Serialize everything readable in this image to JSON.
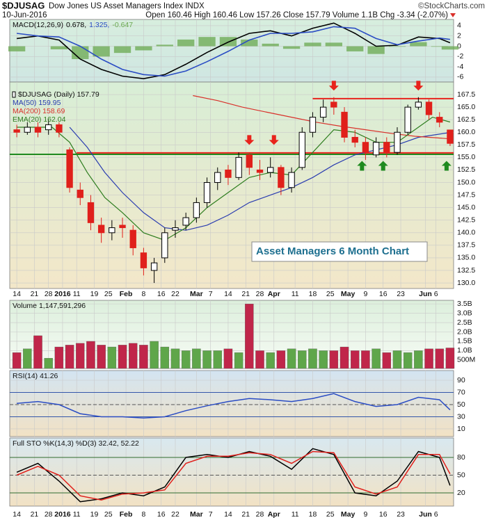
{
  "header": {
    "symbol": "$DJUSAG",
    "name": "Dow Jones US Asset Managers Index INDX",
    "credit": "©StockCharts.com",
    "date": "10-Jun-2016",
    "quote": "Open 160.46 High 160.46 Low 157.26 Close 157.79 Volume 1.1B Chg -3.34 (-2.07%)"
  },
  "x_axis": {
    "xlim": [
      -2,
      124
    ],
    "xticks": [
      {
        "value": 0,
        "label": "14"
      },
      {
        "value": 5,
        "label": "21"
      },
      {
        "value": 9,
        "label": "28"
      },
      {
        "value": 13,
        "label": "2016"
      },
      {
        "value": 17,
        "label": "11"
      },
      {
        "value": 22,
        "label": "19"
      },
      {
        "value": 26,
        "label": "25"
      },
      {
        "value": 31,
        "label": "Feb"
      },
      {
        "value": 36,
        "label": "8"
      },
      {
        "value": 41,
        "label": "16"
      },
      {
        "value": 45,
        "label": "22"
      },
      {
        "value": 51,
        "label": "Mar"
      },
      {
        "value": 55,
        "label": "7"
      },
      {
        "value": 60,
        "label": "14"
      },
      {
        "value": 65,
        "label": "21"
      },
      {
        "value": 69,
        "label": "28"
      },
      {
        "value": 73,
        "label": "Apr"
      },
      {
        "value": 79,
        "label": "11"
      },
      {
        "value": 84,
        "label": "18"
      },
      {
        "value": 89,
        "label": "25"
      },
      {
        "value": 94,
        "label": "May"
      },
      {
        "value": 99,
        "label": "9"
      },
      {
        "value": 104,
        "label": "16"
      },
      {
        "value": 109,
        "label": "23"
      },
      {
        "value": 116,
        "label": "Jun"
      },
      {
        "value": 119,
        "label": "6"
      }
    ]
  },
  "chart_data": [
    {
      "type": "macd",
      "title": "MACD(12,26,9)",
      "x": [
        0,
        6,
        12,
        18,
        24,
        30,
        36,
        42,
        48,
        54,
        60,
        66,
        72,
        78,
        84,
        90,
        96,
        102,
        108,
        114,
        120,
        123
      ],
      "series": [
        {
          "label": "0.678,",
          "color": "#000000",
          "style": "line",
          "values": [
            1.5,
            2.0,
            1.2,
            -2.5,
            -4.5,
            -5.8,
            -6.3,
            -5.5,
            -3.5,
            -1.2,
            0.8,
            2.5,
            3.0,
            2.0,
            3.5,
            4.5,
            2.5,
            0.0,
            0.2,
            1.8,
            1.5,
            0.678
          ]
        },
        {
          "label": "1.325,",
          "color": "#2a4cc4",
          "style": "line",
          "values": [
            2.5,
            2.0,
            1.8,
            0,
            -2.5,
            -4.5,
            -5.5,
            -5.8,
            -4.8,
            -3,
            -1,
            1.2,
            2.5,
            2.5,
            2.8,
            3.8,
            3.5,
            1.5,
            0.3,
            1.0,
            1.6,
            1.325
          ]
        },
        {
          "label": "-0.647",
          "color": "#6aa84f",
          "style": "histogram",
          "values": [
            -1,
            0,
            -0.6,
            -2.5,
            -2,
            -1.3,
            -0.8,
            0.3,
            1.3,
            1.8,
            1.8,
            1.3,
            0.5,
            -0.5,
            0.7,
            0.7,
            -1,
            -1.5,
            -0.1,
            0.8,
            -0.1,
            -0.647
          ]
        }
      ],
      "ylim": [
        -6.95,
        5.2
      ],
      "yticks": [
        4,
        2,
        0,
        -2,
        -4,
        -6
      ],
      "grid": true
    },
    {
      "type": "candlestick",
      "title": "$DJUSAG (Daily) 157.79",
      "x": [
        0,
        3,
        6,
        9,
        12,
        15,
        18,
        21,
        24,
        27,
        30,
        33,
        36,
        39,
        42,
        45,
        48,
        51,
        54,
        57,
        60,
        63,
        66,
        69,
        72,
        75,
        78,
        81,
        84,
        87,
        90,
        93,
        96,
        99,
        102,
        105,
        108,
        111,
        114,
        117,
        120,
        123
      ],
      "open": [
        160.5,
        160,
        161,
        160.5,
        161.5,
        156.5,
        148.5,
        146,
        141.5,
        140,
        141.5,
        140.5,
        136,
        132.5,
        135,
        140.5,
        141.5,
        143,
        146,
        150,
        152.5,
        151,
        155.5,
        152.5,
        152,
        153,
        149,
        153,
        160,
        163,
        166,
        164,
        159,
        158,
        155.5,
        158,
        156,
        160,
        165,
        166,
        163,
        160.46
      ],
      "high": [
        161.5,
        162,
        162,
        162.5,
        162,
        157,
        150,
        147.5,
        143,
        142.5,
        143,
        141.5,
        137,
        135,
        141,
        142.5,
        144,
        147,
        151,
        153,
        153.5,
        156,
        156,
        154.5,
        155,
        153.5,
        153,
        161,
        164,
        166.5,
        167,
        165,
        160.5,
        159,
        159,
        159,
        161,
        165.5,
        167,
        166.5,
        164,
        160.46
      ],
      "low": [
        159,
        159.5,
        159,
        159.5,
        159,
        148,
        145.5,
        140.5,
        138,
        138.5,
        139,
        135.5,
        131.5,
        130,
        134,
        139,
        140.5,
        142,
        145,
        148.5,
        149.5,
        150.5,
        151.5,
        150.5,
        151,
        147.5,
        148,
        152.5,
        159,
        162,
        163.5,
        158,
        157,
        154.5,
        155,
        155,
        155.5,
        159.5,
        164.5,
        162.5,
        161,
        157.26
      ],
      "close": [
        160,
        161,
        160,
        161.5,
        160,
        149,
        147,
        142,
        140,
        141,
        141,
        137,
        133,
        134,
        140,
        141,
        143,
        146,
        150,
        152,
        151,
        155,
        153,
        152,
        153,
        149,
        152,
        160,
        163,
        165,
        165,
        159,
        158,
        156,
        158,
        156,
        160,
        165,
        166,
        163.5,
        162,
        157.79
      ],
      "up_color": "#000000",
      "down_color": "#e0201b",
      "overlays": [
        {
          "label": "MA(50) 159.95",
          "color": "#2a3cb0",
          "x": [
            15,
            20,
            25,
            30,
            36,
            42,
            48,
            54,
            60,
            66,
            72,
            78,
            84,
            90,
            96,
            102,
            108,
            114,
            123
          ],
          "values": [
            161,
            157,
            152,
            148,
            144,
            141,
            140.5,
            141.5,
            143.5,
            146,
            147.5,
            149,
            151,
            153.5,
            155.5,
            156.5,
            157.5,
            159,
            159.95
          ]
        },
        {
          "label": "MA(200) 158.69",
          "color": "#d9302a",
          "x": [
            50,
            57,
            64,
            71,
            78,
            85,
            92,
            99,
            106,
            113,
            123
          ],
          "values": [
            167.3,
            166.3,
            165,
            164,
            163,
            162,
            161.2,
            160.5,
            159.8,
            159.2,
            158.69
          ]
        },
        {
          "label": "EMA(20) 162.04",
          "color": "#2e7d1f",
          "x": [
            0,
            10,
            15,
            20,
            25,
            30,
            36,
            42,
            48,
            54,
            60,
            66,
            72,
            78,
            84,
            90,
            96,
            102,
            108,
            114,
            118,
            123
          ],
          "values": [
            161,
            161,
            158,
            152,
            147,
            144,
            140,
            138.5,
            141,
            145,
            148,
            151,
            152,
            151.5,
            156,
            160.5,
            160,
            158,
            158,
            161,
            163,
            162.04
          ]
        }
      ],
      "hlines": [
        {
          "value": 155.6,
          "from": -2,
          "color": "#1f8a1f"
        },
        {
          "value": 155.9,
          "from": 17,
          "color": "#e8231c"
        },
        {
          "value": 166.7,
          "from": 84,
          "color": "#e8231c"
        }
      ],
      "arrows": [
        {
          "x": 66,
          "value": 157.5,
          "direction": "down",
          "color": "#e8231c"
        },
        {
          "x": 73,
          "value": 157.5,
          "direction": "down",
          "color": "#e8231c"
        },
        {
          "x": 90,
          "value": 168.3,
          "direction": "down",
          "color": "#e8231c"
        },
        {
          "x": 114,
          "value": 168.3,
          "direction": "down",
          "color": "#e8231c"
        },
        {
          "x": 98,
          "value": 154.3,
          "direction": "up",
          "color": "#1f8a1f"
        },
        {
          "x": 104,
          "value": 154.3,
          "direction": "up",
          "color": "#1f8a1f"
        },
        {
          "x": 122,
          "value": 154.3,
          "direction": "up",
          "color": "#1f8a1f"
        }
      ],
      "annotation": "Asset Managers 6 Month Chart",
      "ylim": [
        128.9,
        170
      ],
      "yticks": [
        {
          "value": 130,
          "label": "130.0"
        },
        {
          "value": 132.5,
          "label": "132.5"
        },
        {
          "value": 135,
          "label": "135.0"
        },
        {
          "value": 137.5,
          "label": "137.5"
        },
        {
          "value": 140,
          "label": "140.0"
        },
        {
          "value": 142.5,
          "label": "142.5"
        },
        {
          "value": 145,
          "label": "145.0"
        },
        {
          "value": 147.5,
          "label": "147.5"
        },
        {
          "value": 150,
          "label": "150.0"
        },
        {
          "value": 152.5,
          "label": "152.5"
        },
        {
          "value": 155,
          "label": "155.0"
        },
        {
          "value": 157.5,
          "label": "157.5"
        },
        {
          "value": 160,
          "label": "160.0"
        },
        {
          "value": 162.5,
          "label": "162.5"
        },
        {
          "value": 165,
          "label": "165.0"
        },
        {
          "value": 167.5,
          "label": "167.5"
        }
      ],
      "grid": true
    },
    {
      "type": "volume",
      "title": "Volume 1,147,591,296",
      "x": [
        0,
        3,
        6,
        9,
        12,
        15,
        18,
        21,
        24,
        27,
        30,
        33,
        36,
        39,
        42,
        45,
        48,
        51,
        54,
        57,
        60,
        63,
        66,
        69,
        72,
        75,
        78,
        81,
        84,
        87,
        90,
        93,
        96,
        99,
        102,
        105,
        108,
        111,
        114,
        117,
        120,
        123
      ],
      "values": [
        900000000,
        1100000000,
        1800000000,
        600000000,
        1200000000,
        1300000000,
        1400000000,
        1500000000,
        1300000000,
        1200000000,
        1300000000,
        1400000000,
        1300000000,
        1500000000,
        1200000000,
        1100000000,
        1000000000,
        1100000000,
        1000000000,
        1000000000,
        1100000000,
        900000000,
        3500000000,
        1000000000,
        900000000,
        1000000000,
        1100000000,
        1000000000,
        1100000000,
        1000000000,
        1000000000,
        1200000000,
        1000000000,
        1000000000,
        1100000000,
        900000000,
        1000000000,
        900000000,
        1000000000,
        1100000000,
        1100000000,
        1147591296
      ],
      "up_color": "#5fa64a",
      "down_color": "#c0264a",
      "ylim": [
        50000000,
        3690000000
      ],
      "yticks": [
        {
          "value": 500000000,
          "label": "500M"
        },
        {
          "value": 1000000000,
          "label": "1.0B"
        },
        {
          "value": 1500000000,
          "label": "1.5B"
        },
        {
          "value": 2000000000,
          "label": "2.0B"
        },
        {
          "value": 2500000000,
          "label": "2.5B"
        },
        {
          "value": 3000000000,
          "label": "3.0B"
        },
        {
          "value": 3500000000,
          "label": "3.5B"
        }
      ],
      "grid": true
    },
    {
      "type": "line",
      "title": "RSI(14) 41.26",
      "x": [
        0,
        6,
        12,
        18,
        24,
        30,
        36,
        42,
        48,
        54,
        60,
        66,
        72,
        78,
        84,
        90,
        96,
        102,
        108,
        114,
        120,
        123
      ],
      "series": [
        {
          "color": "#2a4cc4",
          "values": [
            52,
            55,
            50,
            35,
            30,
            30,
            28,
            30,
            40,
            48,
            55,
            60,
            58,
            55,
            60,
            68,
            55,
            47,
            50,
            62,
            58,
            41.26
          ]
        }
      ],
      "levels": [
        {
          "value": 70,
          "color": "#3355aa",
          "dashed": false
        },
        {
          "value": 50,
          "color": "#555555",
          "dashed": true
        },
        {
          "value": 30,
          "color": "#3355aa",
          "dashed": false
        }
      ],
      "ylim": [
        -2.6,
        106
      ],
      "yticks": [
        10,
        30,
        50,
        70,
        90
      ],
      "grid": true
    },
    {
      "type": "line",
      "title": "Full STO %K(14,3) %D(3) 32.42, 52.22",
      "x": [
        0,
        6,
        12,
        18,
        24,
        30,
        36,
        42,
        48,
        54,
        60,
        66,
        72,
        78,
        84,
        90,
        96,
        102,
        108,
        114,
        120,
        123
      ],
      "series": [
        {
          "color": "#000000",
          "values": [
            55,
            70,
            40,
            5,
            10,
            20,
            15,
            30,
            80,
            85,
            80,
            90,
            82,
            60,
            95,
            85,
            20,
            15,
            40,
            90,
            80,
            32.42
          ]
        },
        {
          "color": "#e0201b",
          "values": [
            50,
            65,
            50,
            15,
            8,
            18,
            20,
            25,
            70,
            82,
            82,
            88,
            85,
            70,
            90,
            88,
            30,
            18,
            30,
            85,
            85,
            52.22
          ]
        }
      ],
      "levels": [
        {
          "value": 80,
          "color": "#2e6b2e",
          "dashed": false
        },
        {
          "value": 50,
          "color": "#555555",
          "dashed": true
        },
        {
          "value": 20,
          "color": "#2e6b2e",
          "dashed": false
        }
      ],
      "ylim": [
        -2.4,
        113
      ],
      "yticks": [
        20,
        50,
        80
      ],
      "grid": true
    }
  ]
}
